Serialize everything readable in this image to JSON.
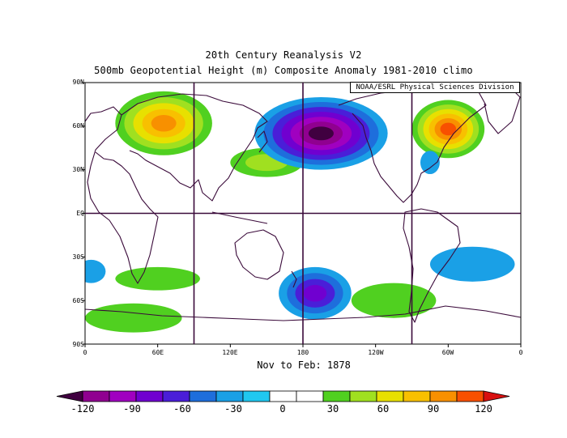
{
  "title_line1": "20th Century Reanalysis V2",
  "title_line2": "500mb Geopotential Height (m) Composite Anomaly 1981-2010 climo",
  "attribution": "NOAA/ESRL Physical Sciences Division",
  "subtitle": "Nov to Feb: 1878",
  "lat_labels": [
    "90N",
    "60N",
    "30N",
    "EQ",
    "30S",
    "60S",
    "90S"
  ],
  "lon_labels": [
    "0",
    "60E",
    "120E",
    "180",
    "120W",
    "60W",
    "0"
  ],
  "colorbar": {
    "labels": [
      "-120",
      "-90",
      "-60",
      "-30",
      "0",
      "30",
      "60",
      "90",
      "120"
    ],
    "colors": [
      "#400040",
      "#900090",
      "#a000c0",
      "#7000d0",
      "#4a1ed8",
      "#1e6edc",
      "#1aa0e6",
      "#20c8f0",
      "#ffffff",
      "#ffffff",
      "#50d020",
      "#a0e020",
      "#e8e000",
      "#f8c000",
      "#f89000",
      "#f85000",
      "#d81010"
    ]
  },
  "anomalies": [
    {
      "lon": 65,
      "lat": 62,
      "rx": 40,
      "ry": 22,
      "value": 100
    },
    {
      "lon": 150,
      "lat": 35,
      "rx": 30,
      "ry": 10,
      "value": 45
    },
    {
      "lon": 195,
      "lat": 55,
      "rx": 55,
      "ry": 25,
      "value": -120
    },
    {
      "lon": 300,
      "lat": 58,
      "rx": 30,
      "ry": 20,
      "value": 110
    },
    {
      "lon": 285,
      "lat": 35,
      "rx": 8,
      "ry": 8,
      "value": -35
    },
    {
      "lon": 60,
      "lat": -45,
      "rx": 35,
      "ry": 8,
      "value": 30
    },
    {
      "lon": 40,
      "lat": -72,
      "rx": 40,
      "ry": 10,
      "value": 40
    },
    {
      "lon": 190,
      "lat": -55,
      "rx": 30,
      "ry": 18,
      "value": -75
    },
    {
      "lon": 255,
      "lat": -60,
      "rx": 35,
      "ry": 12,
      "value": 40
    },
    {
      "lon": 320,
      "lat": -35,
      "rx": 35,
      "ry": 12,
      "value": -35
    },
    {
      "lon": 5,
      "lat": -40,
      "rx": 12,
      "ry": 8,
      "value": -35
    }
  ]
}
